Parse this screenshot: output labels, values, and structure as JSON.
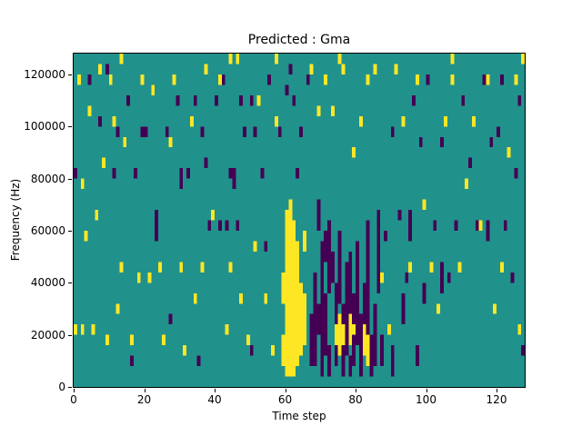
{
  "figure": {
    "background": "#ffffff"
  },
  "chart_data": {
    "type": "heatmap",
    "title": "Predicted : Gma",
    "xlabel": "Time step",
    "ylabel": "Frequency (Hz)",
    "x_range": [
      0,
      128
    ],
    "y_range": [
      0,
      128000
    ],
    "n_time_steps": 128,
    "n_freq_bins": 32,
    "freq_per_bin_hz": 4000,
    "grid": false,
    "legend": "none",
    "colormap": "viridis",
    "background_cell_color": "#21918c",
    "x_ticks": [
      {
        "value": 0,
        "label": "0"
      },
      {
        "value": 20,
        "label": "20"
      },
      {
        "value": 40,
        "label": "40"
      },
      {
        "value": 60,
        "label": "60"
      },
      {
        "value": 80,
        "label": "80"
      },
      {
        "value": 100,
        "label": "100"
      },
      {
        "value": 120,
        "label": "120"
      }
    ],
    "y_ticks": [
      {
        "value": 0,
        "label": "0"
      },
      {
        "value": 20000,
        "label": "20000"
      },
      {
        "value": 40000,
        "label": "40000"
      },
      {
        "value": 60000,
        "label": "60000"
      },
      {
        "value": 80000,
        "label": "80000"
      },
      {
        "value": 100000,
        "label": "100000"
      },
      {
        "value": 120000,
        "label": "120000"
      }
    ],
    "series": [
      {
        "name": "low-value-cells",
        "color": "#440154",
        "runs": [
          [
            67,
            2,
            6
          ],
          [
            68,
            2,
            10
          ],
          [
            69,
            5,
            7
          ],
          [
            69,
            15,
            17
          ],
          [
            70,
            1,
            13
          ],
          [
            71,
            3,
            8
          ],
          [
            71,
            12,
            14
          ],
          [
            72,
            1,
            3
          ],
          [
            72,
            9,
            15
          ],
          [
            73,
            10,
            12
          ],
          [
            74,
            6,
            9
          ],
          [
            74,
            2,
            3
          ],
          [
            75,
            8,
            14
          ],
          [
            76,
            1,
            3
          ],
          [
            76,
            6,
            7
          ],
          [
            77,
            3,
            11
          ],
          [
            78,
            1,
            2
          ],
          [
            78,
            7,
            12
          ],
          [
            79,
            2,
            4
          ],
          [
            79,
            6,
            8
          ],
          [
            80,
            4,
            13
          ],
          [
            81,
            1,
            6
          ],
          [
            82,
            6,
            9
          ],
          [
            83,
            5,
            15
          ],
          [
            84,
            1,
            4
          ],
          [
            85,
            2,
            7
          ],
          [
            86,
            9,
            16
          ],
          [
            23,
            14,
            16
          ],
          [
            45,
            19,
            20
          ],
          [
            95,
            14,
            16
          ],
          [
            104,
            9,
            11
          ],
          [
            117,
            14,
            15
          ],
          [
            30,
            19,
            20
          ],
          [
            87,
            2,
            4
          ],
          [
            90,
            1,
            3
          ],
          [
            93,
            6,
            8
          ],
          [
            97,
            2,
            3
          ],
          [
            99,
            8,
            9
          ],
          [
            0,
            20,
            20
          ],
          [
            4,
            29,
            29
          ],
          [
            7,
            25,
            25
          ],
          [
            9,
            30,
            30
          ],
          [
            11,
            20,
            20
          ],
          [
            12,
            24,
            24
          ],
          [
            15,
            27,
            27
          ],
          [
            16,
            2,
            2
          ],
          [
            17,
            20,
            20
          ],
          [
            19,
            24,
            24
          ],
          [
            20,
            24,
            24
          ],
          [
            26,
            24,
            24
          ],
          [
            27,
            6,
            6
          ],
          [
            29,
            27,
            27
          ],
          [
            32,
            20,
            20
          ],
          [
            34,
            27,
            27
          ],
          [
            35,
            2,
            2
          ],
          [
            36,
            24,
            24
          ],
          [
            37,
            21,
            21
          ],
          [
            38,
            15,
            15
          ],
          [
            40,
            27,
            27
          ],
          [
            41,
            15,
            15
          ],
          [
            42,
            29,
            29
          ],
          [
            43,
            15,
            15
          ],
          [
            44,
            20,
            20
          ],
          [
            46,
            15,
            15
          ],
          [
            47,
            27,
            27
          ],
          [
            48,
            24,
            24
          ],
          [
            50,
            27,
            27
          ],
          [
            50,
            3,
            3
          ],
          [
            51,
            24,
            24
          ],
          [
            53,
            20,
            20
          ],
          [
            54,
            13,
            13
          ],
          [
            55,
            29,
            29
          ],
          [
            58,
            24,
            24
          ],
          [
            60,
            28,
            28
          ],
          [
            61,
            30,
            30
          ],
          [
            62,
            27,
            27
          ],
          [
            63,
            20,
            20
          ],
          [
            64,
            24,
            24
          ],
          [
            66,
            29,
            29
          ],
          [
            88,
            14,
            14
          ],
          [
            90,
            24,
            24
          ],
          [
            92,
            16,
            16
          ],
          [
            94,
            10,
            10
          ],
          [
            96,
            27,
            27
          ],
          [
            98,
            23,
            23
          ],
          [
            100,
            29,
            29
          ],
          [
            102,
            15,
            15
          ],
          [
            104,
            23,
            23
          ],
          [
            106,
            10,
            10
          ],
          [
            108,
            15,
            15
          ],
          [
            110,
            27,
            27
          ],
          [
            112,
            21,
            21
          ],
          [
            114,
            15,
            15
          ],
          [
            116,
            29,
            29
          ],
          [
            118,
            23,
            23
          ],
          [
            120,
            24,
            24
          ],
          [
            121,
            29,
            29
          ],
          [
            122,
            15,
            15
          ],
          [
            124,
            10,
            10
          ],
          [
            125,
            20,
            20
          ],
          [
            126,
            27,
            27
          ],
          [
            127,
            3,
            3
          ]
        ]
      },
      {
        "name": "high-value-cells",
        "color": "#fde725",
        "runs": [
          [
            59,
            2,
            4
          ],
          [
            59,
            8,
            10
          ],
          [
            60,
            1,
            16
          ],
          [
            61,
            1,
            17
          ],
          [
            62,
            1,
            15
          ],
          [
            63,
            2,
            13
          ],
          [
            64,
            3,
            9
          ],
          [
            65,
            4,
            8
          ],
          [
            65,
            13,
            14
          ],
          [
            74,
            4,
            5
          ],
          [
            75,
            3,
            6
          ],
          [
            76,
            4,
            5
          ],
          [
            78,
            4,
            6
          ],
          [
            79,
            5,
            5
          ],
          [
            82,
            3,
            5
          ],
          [
            83,
            2,
            4
          ],
          [
            0,
            5,
            5
          ],
          [
            1,
            29,
            29
          ],
          [
            2,
            5,
            5
          ],
          [
            2,
            19,
            19
          ],
          [
            3,
            14,
            14
          ],
          [
            4,
            26,
            26
          ],
          [
            5,
            5,
            5
          ],
          [
            6,
            16,
            16
          ],
          [
            7,
            30,
            30
          ],
          [
            8,
            21,
            21
          ],
          [
            9,
            4,
            4
          ],
          [
            10,
            29,
            29
          ],
          [
            11,
            25,
            25
          ],
          [
            12,
            7,
            7
          ],
          [
            13,
            11,
            11
          ],
          [
            13,
            31,
            31
          ],
          [
            14,
            23,
            23
          ],
          [
            16,
            4,
            4
          ],
          [
            18,
            10,
            10
          ],
          [
            19,
            29,
            29
          ],
          [
            21,
            10,
            10
          ],
          [
            22,
            28,
            28
          ],
          [
            24,
            11,
            11
          ],
          [
            25,
            4,
            4
          ],
          [
            27,
            23,
            23
          ],
          [
            28,
            29,
            29
          ],
          [
            30,
            11,
            11
          ],
          [
            31,
            3,
            3
          ],
          [
            33,
            25,
            25
          ],
          [
            34,
            8,
            8
          ],
          [
            36,
            11,
            11
          ],
          [
            37,
            30,
            30
          ],
          [
            39,
            16,
            16
          ],
          [
            41,
            29,
            29
          ],
          [
            43,
            5,
            5
          ],
          [
            44,
            11,
            11
          ],
          [
            44,
            31,
            31
          ],
          [
            46,
            31,
            31
          ],
          [
            47,
            8,
            8
          ],
          [
            49,
            4,
            4
          ],
          [
            51,
            13,
            13
          ],
          [
            52,
            27,
            27
          ],
          [
            54,
            8,
            8
          ],
          [
            56,
            3,
            3
          ],
          [
            57,
            25,
            25
          ],
          [
            57,
            31,
            31
          ],
          [
            67,
            30,
            30
          ],
          [
            69,
            26,
            26
          ],
          [
            71,
            29,
            29
          ],
          [
            73,
            26,
            26
          ],
          [
            75,
            31,
            31
          ],
          [
            76,
            30,
            30
          ],
          [
            79,
            22,
            22
          ],
          [
            81,
            25,
            25
          ],
          [
            83,
            29,
            29
          ],
          [
            85,
            30,
            30
          ],
          [
            87,
            10,
            10
          ],
          [
            89,
            5,
            5
          ],
          [
            91,
            30,
            30
          ],
          [
            93,
            25,
            25
          ],
          [
            95,
            11,
            11
          ],
          [
            97,
            29,
            29
          ],
          [
            99,
            17,
            17
          ],
          [
            101,
            11,
            11
          ],
          [
            103,
            7,
            7
          ],
          [
            105,
            25,
            25
          ],
          [
            107,
            29,
            29
          ],
          [
            107,
            31,
            31
          ],
          [
            109,
            11,
            11
          ],
          [
            111,
            19,
            19
          ],
          [
            113,
            25,
            25
          ],
          [
            115,
            15,
            15
          ],
          [
            117,
            29,
            29
          ],
          [
            119,
            7,
            7
          ],
          [
            121,
            11,
            11
          ],
          [
            123,
            22,
            22
          ],
          [
            125,
            29,
            29
          ],
          [
            126,
            5,
            5
          ],
          [
            127,
            31,
            31
          ]
        ]
      }
    ]
  }
}
